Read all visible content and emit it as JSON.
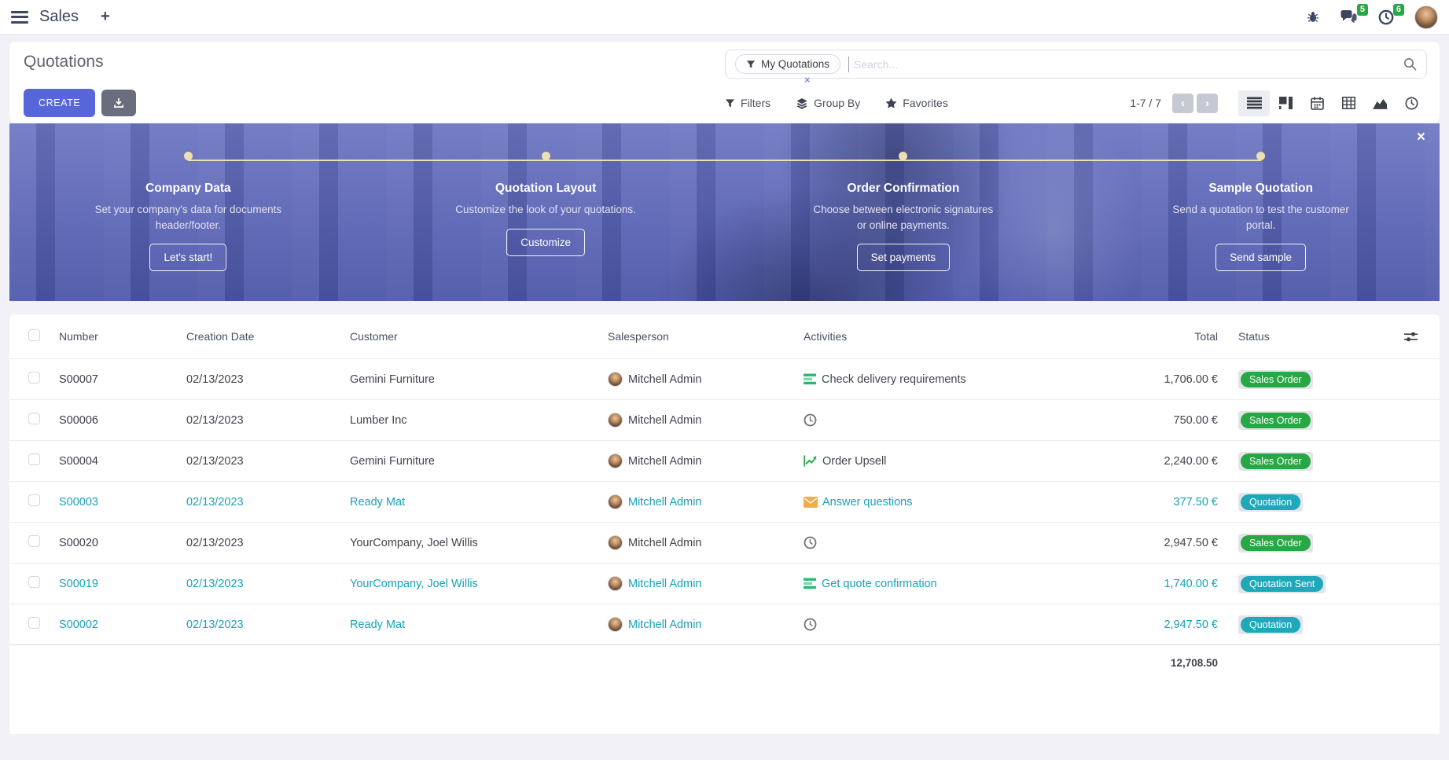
{
  "navbar": {
    "app_name": "Sales",
    "new_tab_label": "+",
    "message_badge": "5",
    "activity_badge": "6"
  },
  "control_panel": {
    "title": "Quotations",
    "create_label": "CREATE",
    "facet_label": "My Quotations",
    "facet_remove_label": "×",
    "search_placeholder": "Search...",
    "filters_label": "Filters",
    "group_by_label": "Group By",
    "favorites_label": "Favorites",
    "pager_value": "1-7 / 7",
    "pager_prev": "‹",
    "pager_next": "›"
  },
  "banner": {
    "close_label": "×",
    "steps": [
      {
        "title": "Company Data",
        "description": "Set your company's data for documents header/footer.",
        "button": "Let's start!"
      },
      {
        "title": "Quotation Layout",
        "description": "Customize the look of your quotations.",
        "button": "Customize"
      },
      {
        "title": "Order Confirmation",
        "description": "Choose between electronic signatures or online payments.",
        "button": "Set payments"
      },
      {
        "title": "Sample Quotation",
        "description": "Send a quotation to test the customer portal.",
        "button": "Send sample"
      }
    ]
  },
  "table": {
    "headers": {
      "number": "Number",
      "creation_date": "Creation Date",
      "customer": "Customer",
      "salesperson": "Salesperson",
      "activities": "Activities",
      "total": "Total",
      "status": "Status"
    },
    "rows": [
      {
        "number": "S00007",
        "creation_date": "02/13/2023",
        "customer": "Gemini Furniture",
        "salesperson": "Mitchell Admin",
        "activity_icon": "tasks",
        "activity_label": "Check delivery requirements",
        "total": "1,706.00 €",
        "status": "Sales Order",
        "status_type": "success",
        "highlighted": false
      },
      {
        "number": "S00006",
        "creation_date": "02/13/2023",
        "customer": "Lumber Inc",
        "salesperson": "Mitchell Admin",
        "activity_icon": "clock",
        "activity_label": "",
        "total": "750.00 €",
        "status": "Sales Order",
        "status_type": "success",
        "highlighted": false
      },
      {
        "number": "S00004",
        "creation_date": "02/13/2023",
        "customer": "Gemini Furniture",
        "salesperson": "Mitchell Admin",
        "activity_icon": "chart",
        "activity_label": "Order Upsell",
        "total": "2,240.00 €",
        "status": "Sales Order",
        "status_type": "success",
        "highlighted": false
      },
      {
        "number": "S00003",
        "creation_date": "02/13/2023",
        "customer": "Ready Mat",
        "salesperson": "Mitchell Admin",
        "activity_icon": "envelope",
        "activity_label": "Answer questions",
        "total": "377.50 €",
        "status": "Quotation",
        "status_type": "info",
        "highlighted": true
      },
      {
        "number": "S00020",
        "creation_date": "02/13/2023",
        "customer": "YourCompany, Joel Willis",
        "salesperson": "Mitchell Admin",
        "activity_icon": "clock",
        "activity_label": "",
        "total": "2,947.50 €",
        "status": "Sales Order",
        "status_type": "success",
        "highlighted": false
      },
      {
        "number": "S00019",
        "creation_date": "02/13/2023",
        "customer": "YourCompany, Joel Willis",
        "salesperson": "Mitchell Admin",
        "activity_icon": "tasks",
        "activity_label": "Get quote confirmation",
        "total": "1,740.00 €",
        "status": "Quotation Sent",
        "status_type": "info",
        "highlighted": true
      },
      {
        "number": "S00002",
        "creation_date": "02/13/2023",
        "customer": "Ready Mat",
        "salesperson": "Mitchell Admin",
        "activity_icon": "clock",
        "activity_label": "",
        "total": "2,947.50 €",
        "status": "Quotation",
        "status_type": "info",
        "highlighted": true
      }
    ],
    "footer_total": "12,708.50"
  },
  "colors": {
    "accent": "#5766d8",
    "success": "#28a745",
    "info": "#17a2b8",
    "banner_line": "#eedfb2"
  }
}
